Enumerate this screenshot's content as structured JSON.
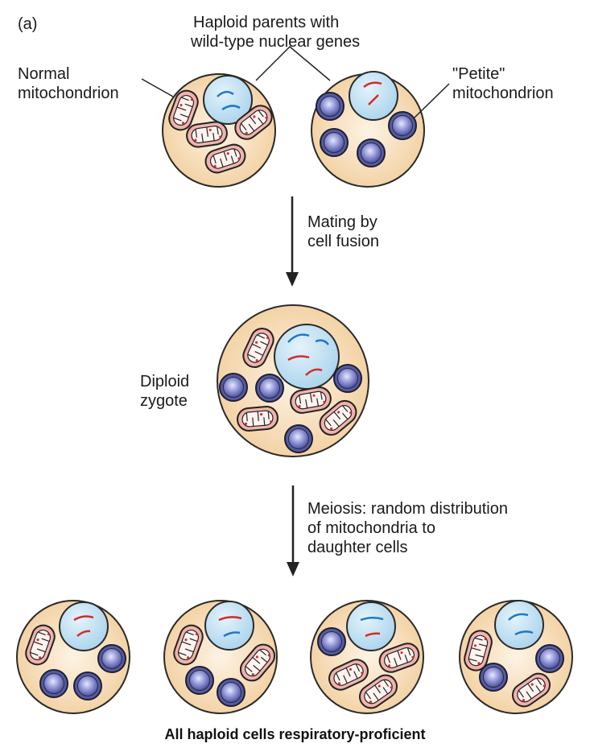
{
  "panel_label": "(a)",
  "labels": {
    "parents_line1": "Haploid parents with",
    "parents_line2": "wild-type nuclear genes",
    "normal_line1": "Normal",
    "normal_line2": "mitochondrion",
    "petite_line1": "\"Petite\"",
    "petite_line2": "mitochondrion",
    "mating_line1": "Mating by",
    "mating_line2": "cell fusion",
    "diploid_line1": "Diploid",
    "diploid_line2": "zygote",
    "meiosis_line1": "Meiosis: random distribution",
    "meiosis_line2": "of mitochondria to",
    "meiosis_line3": "daughter cells"
  },
  "caption": "All haploid cells respiratory-proficient",
  "colors": {
    "cell_fill": "#f6d9b0",
    "cell_stroke": "#2a2a2a",
    "nucleus_fill": "#bfe0f2",
    "mito_fill": "#f2b7b0",
    "petite_fill": "#4a4f99",
    "chromosome_wild_blue": "#1f78c8",
    "chromosome_red": "#d42a2a"
  }
}
